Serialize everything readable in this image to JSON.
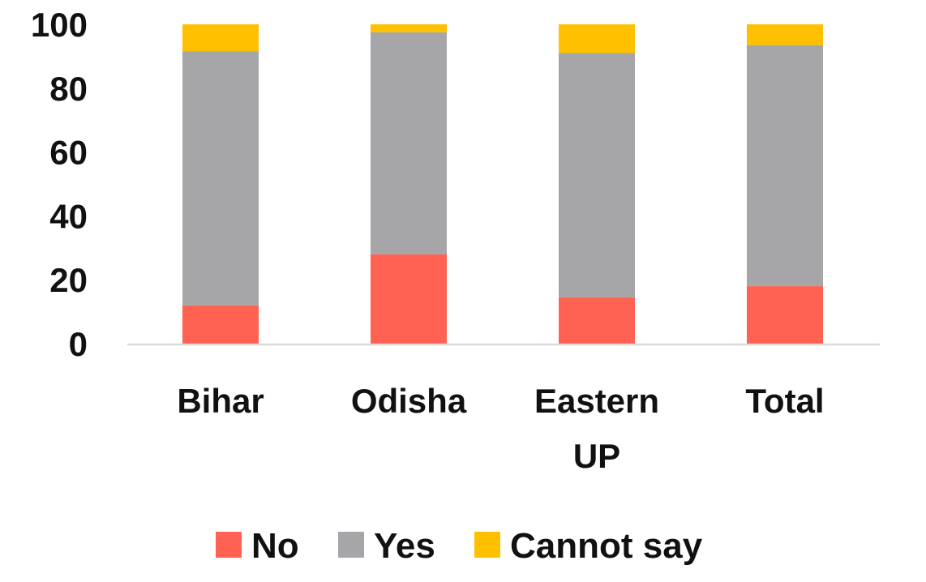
{
  "chart_data": {
    "type": "bar",
    "stacked": true,
    "title": "",
    "xlabel": "",
    "ylabel": "",
    "ylim": [
      0,
      100
    ],
    "yticks": [
      0,
      20,
      40,
      60,
      80,
      100
    ],
    "grid": false,
    "legend_position": "bottom",
    "categories": [
      [
        "Bihar"
      ],
      [
        "Odisha"
      ],
      [
        "Eastern",
        "UP"
      ],
      [
        "Total"
      ]
    ],
    "series": [
      {
        "name": "No",
        "color": "#FF6153",
        "values": [
          12,
          28,
          14.5,
          18
        ]
      },
      {
        "name": "Yes",
        "color": "#A6A5A8",
        "values": [
          79.5,
          69.5,
          76.5,
          75.5
        ]
      },
      {
        "name": "Cannot say",
        "color": "#FFC000",
        "values": [
          8.5,
          2.5,
          9,
          6.5
        ]
      }
    ]
  }
}
